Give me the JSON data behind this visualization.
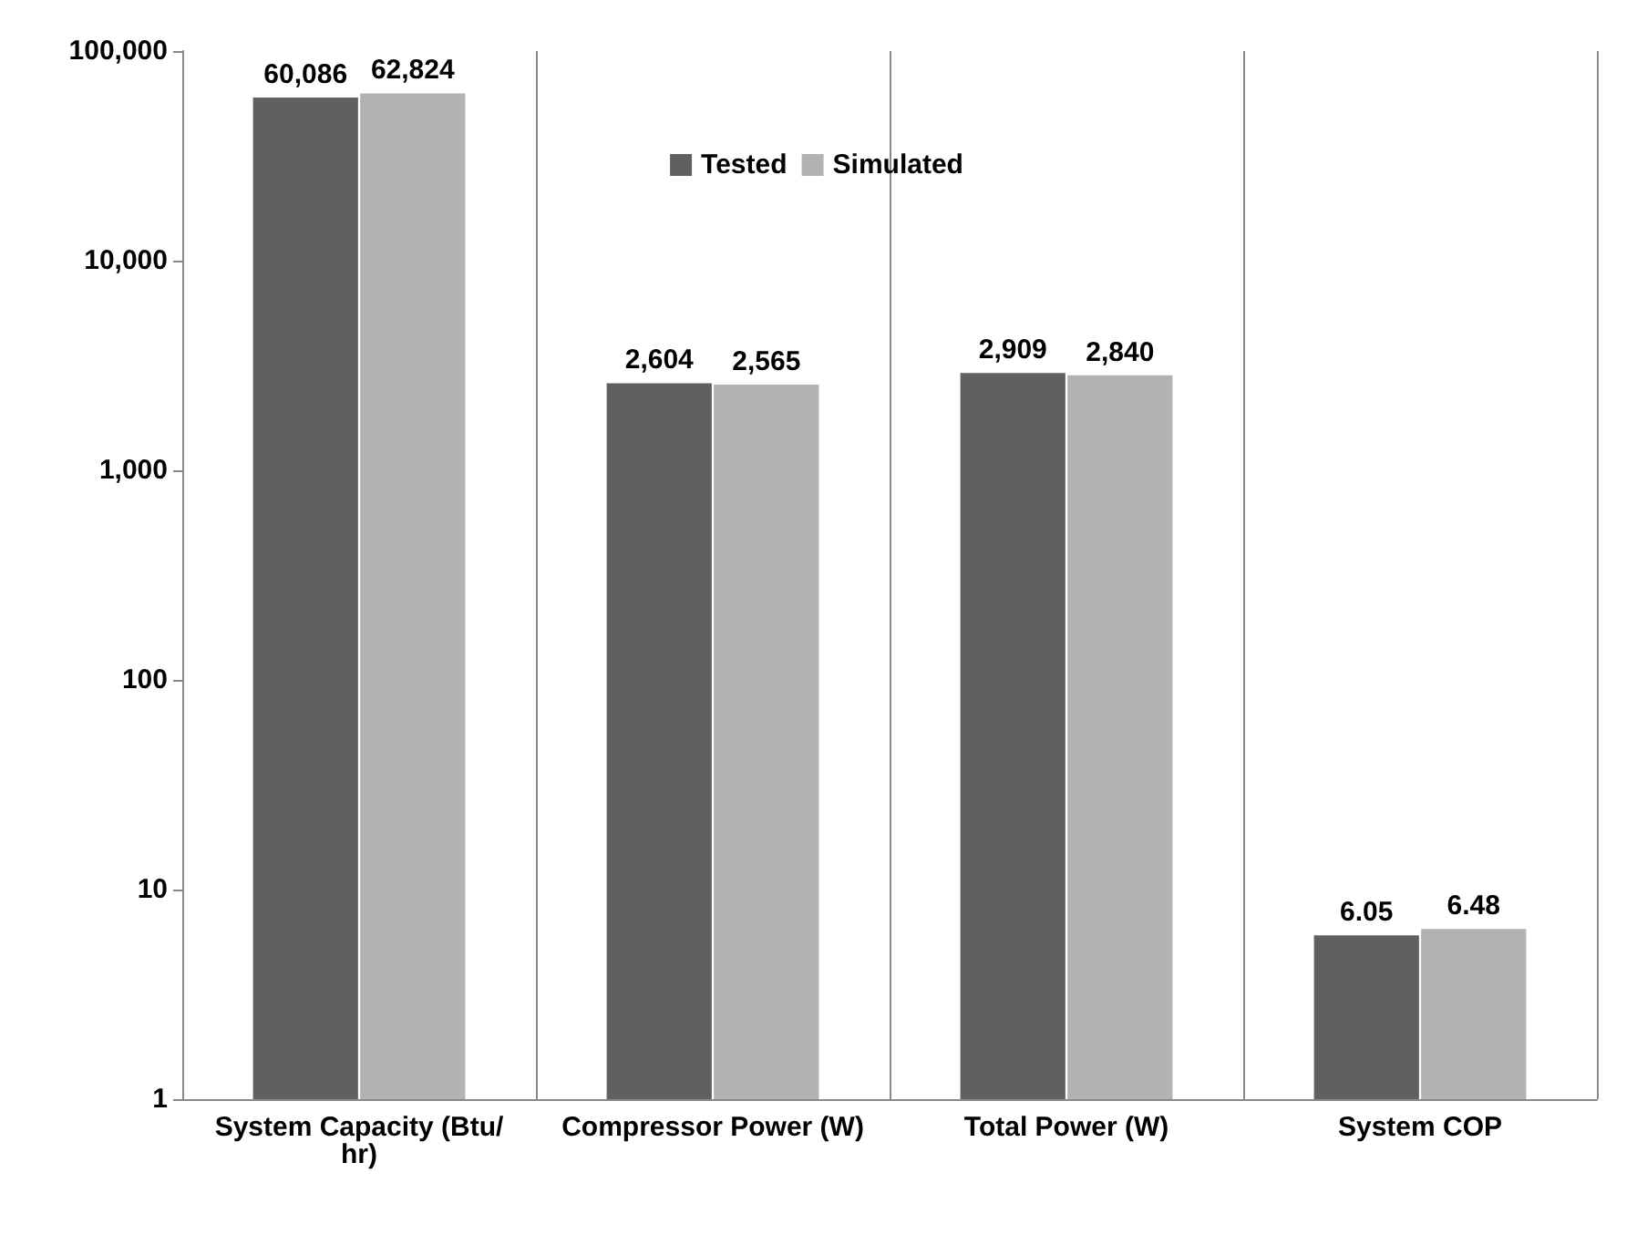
{
  "chart_data": {
    "type": "bar",
    "categories": [
      "System Capacity (Btu/hr)",
      "Compressor Power (W)",
      "Total Power (W)",
      "System COP"
    ],
    "series": [
      {
        "name": "Tested",
        "color": "#606060",
        "values": [
          60086,
          2604,
          2909,
          6.05
        ],
        "value_labels": [
          "60,086",
          "2,604",
          "2,909",
          "6.05"
        ]
      },
      {
        "name": "Simulated",
        "color": "#b2b2b2",
        "values": [
          62824,
          2565,
          2840,
          6.48
        ],
        "value_labels": [
          "62,824",
          "2,565",
          "2,840",
          "6.48"
        ]
      }
    ],
    "log": "y",
    "ylim": [
      1,
      100000
    ],
    "yticks": [
      1,
      10,
      100,
      {
        "value": 1000,
        "label": "1,000"
      },
      {
        "value": 10000,
        "label": "10,000"
      },
      {
        "value": 100000,
        "label": "100,000"
      }
    ],
    "grid": "x",
    "legend": "top"
  }
}
